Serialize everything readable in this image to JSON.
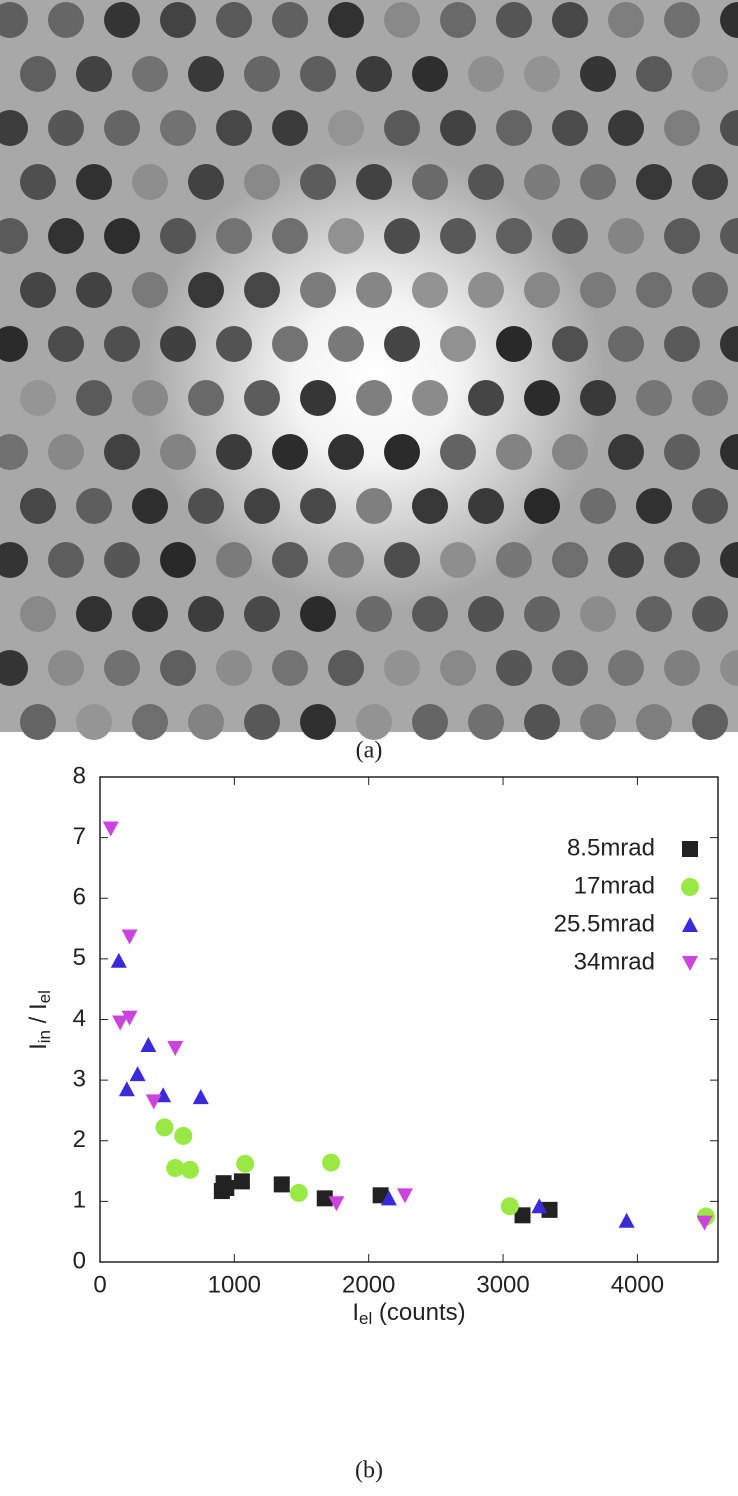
{
  "image_caption": "(a)",
  "chart_caption": "(b)",
  "chart_data": {
    "type": "scatter",
    "x_label": [
      "I",
      "el",
      " (counts)"
    ],
    "y_label": [
      "I",
      "in",
      " / I",
      "el"
    ],
    "xlim": [
      0,
      4600
    ],
    "xticks": [
      0,
      1000,
      2000,
      3000,
      4000
    ],
    "ylim": [
      0,
      8
    ],
    "yticks": [
      0,
      1,
      2,
      3,
      4,
      5,
      6,
      7,
      8
    ],
    "legend": "top-right",
    "series": [
      {
        "name": "8.5mrad",
        "color": "#222222",
        "marker": "square",
        "x": [
          907,
          940,
          920,
          1056,
          1353,
          1673,
          2089,
          3145,
          3346
        ],
        "values": [
          1.17,
          1.22,
          1.3,
          1.33,
          1.28,
          1.05,
          1.1,
          0.77,
          0.86
        ]
      },
      {
        "name": "17mrad",
        "color": "#99e844",
        "marker": "circle",
        "x": [
          480,
          620,
          560,
          670,
          1080,
          1480,
          1720,
          3050,
          4510
        ],
        "values": [
          2.22,
          2.08,
          1.55,
          1.52,
          1.62,
          1.14,
          1.64,
          0.92,
          0.75
        ]
      },
      {
        "name": "25.5mrad",
        "color": "#3a2ad8",
        "marker": "triangle-up",
        "x": [
          140,
          360,
          280,
          200,
          470,
          750,
          2150,
          3270,
          3920
        ],
        "values": [
          4.97,
          3.58,
          3.1,
          2.85,
          2.75,
          2.72,
          1.05,
          0.92,
          0.68
        ]
      },
      {
        "name": "34mrad",
        "color": "#cc44dd",
        "marker": "triangle-down",
        "x": [
          80,
          220,
          220,
          150,
          560,
          400,
          1760,
          2270,
          4500
        ],
        "values": [
          7.15,
          5.37,
          4.03,
          3.95,
          3.53,
          2.65,
          0.97,
          1.1,
          0.65
        ]
      }
    ]
  }
}
